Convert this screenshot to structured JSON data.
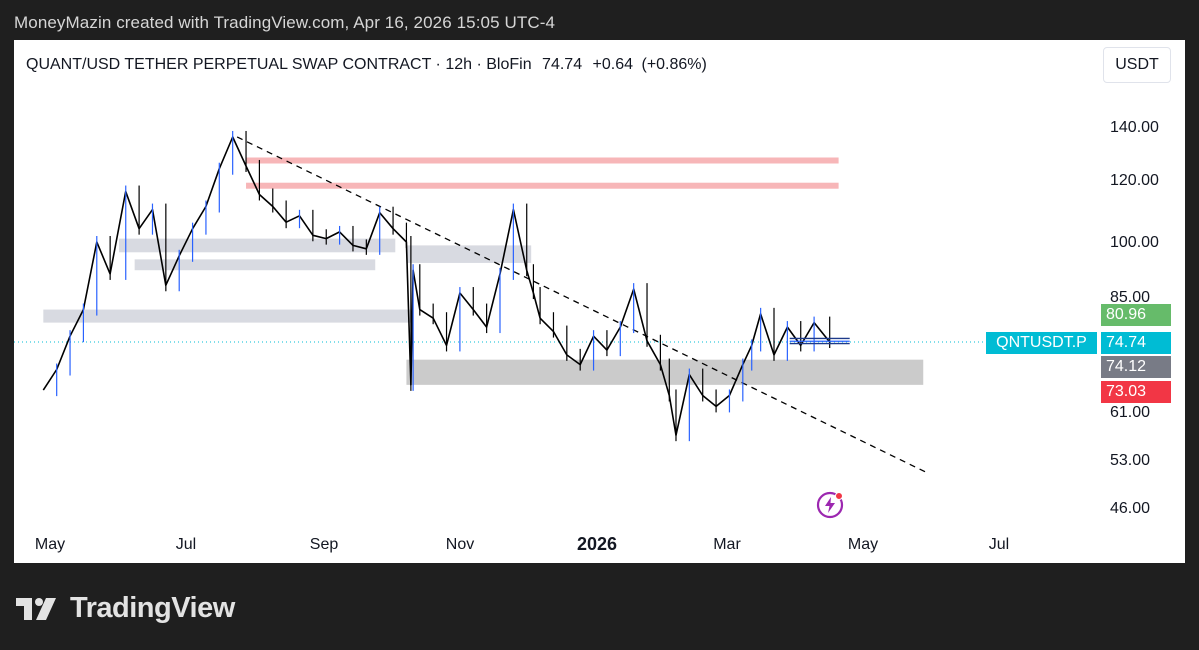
{
  "header": {
    "caption": "MoneyMazin created with TradingView.com, Apr 16, 2026 15:05 UTC-4"
  },
  "legend": {
    "symbol": "QUANT/USD TETHER PERPETUAL SWAP CONTRACT",
    "interval": "12h",
    "exchange": "BloFin",
    "last": "74.74",
    "change": "+0.64",
    "change_pct": "(+0.86%)"
  },
  "currency_button": "USDT",
  "price_scale": {
    "ticks": [
      "140.00",
      "120.00",
      "100.00",
      "85.00",
      "61.00",
      "53.00",
      "46.00"
    ]
  },
  "time_scale": {
    "ticks": [
      "May",
      "Jul",
      "Sep",
      "Nov",
      "2026",
      "Mar",
      "May",
      "Jul"
    ]
  },
  "tags": {
    "symbol_tag": "QNTUSDT.P",
    "last_price": "74.74",
    "green": "80.96",
    "gray": "74.12",
    "red": "73.03"
  },
  "colors": {
    "last_tag": "#00bcd4",
    "green_tag": "#66bb6a",
    "gray_tag": "#787b86",
    "red_tag": "#f23645",
    "candles": "#000000",
    "wick_accent": "#2962ff",
    "resistance": "#f7b6b8",
    "zone": "#d1d4dc",
    "support_zone": "#c8c8c8"
  },
  "footer": {
    "brand": "TradingView",
    "icon": "tradingview-logo-icon"
  },
  "chart_data": {
    "type": "line",
    "title": "QUANT/USD TETHER PERPETUAL SWAP CONTRACT · 12h · BloFin",
    "xlabel": "",
    "ylabel": "",
    "y_scale": "log",
    "ylim": [
      44,
      150
    ],
    "xlim": [
      "2025-04-25",
      "2026-07-25"
    ],
    "series": [
      {
        "name": "QNTUSDT.P",
        "x": [
          "2025-04-28",
          "2025-05-04",
          "2025-05-10",
          "2025-05-16",
          "2025-05-22",
          "2025-05-28",
          "2025-06-04",
          "2025-06-10",
          "2025-06-16",
          "2025-06-22",
          "2025-06-28",
          "2025-07-04",
          "2025-07-10",
          "2025-07-16",
          "2025-07-22",
          "2025-07-28",
          "2025-08-03",
          "2025-08-09",
          "2025-08-15",
          "2025-08-21",
          "2025-08-27",
          "2025-09-02",
          "2025-09-08",
          "2025-09-14",
          "2025-09-20",
          "2025-09-26",
          "2025-10-02",
          "2025-10-08",
          "2025-10-10",
          "2025-10-11",
          "2025-10-14",
          "2025-10-20",
          "2025-10-26",
          "2025-11-01",
          "2025-11-07",
          "2025-11-13",
          "2025-11-19",
          "2025-11-25",
          "2025-12-01",
          "2025-12-04",
          "2025-12-07",
          "2025-12-13",
          "2025-12-19",
          "2025-12-25",
          "2025-12-31",
          "2026-01-06",
          "2026-01-12",
          "2026-01-18",
          "2026-01-24",
          "2026-01-30",
          "2026-02-03",
          "2026-02-06",
          "2026-02-12",
          "2026-02-18",
          "2026-02-24",
          "2026-03-02",
          "2026-03-08",
          "2026-03-12",
          "2026-03-16",
          "2026-03-22",
          "2026-03-28",
          "2026-04-03",
          "2026-04-09",
          "2026-04-16"
        ],
        "values": [
          65,
          69,
          76,
          82,
          100,
          91,
          116,
          104,
          110,
          88,
          96,
          104,
          111,
          124,
          136,
          125,
          115,
          111,
          106,
          108,
          102,
          101,
          103,
          99,
          98,
          109,
          104,
          100,
          66,
          92,
          82,
          80,
          74,
          86,
          82,
          78,
          91,
          110,
          92,
          86,
          80,
          77,
          72,
          70,
          76,
          73,
          78,
          87,
          75,
          70,
          64,
          57,
          68,
          64,
          62,
          64,
          70,
          74,
          81,
          72,
          78,
          74,
          79,
          74.74
        ]
      }
    ],
    "trendline": {
      "from": [
        "2025-07-24",
        136
      ],
      "to": [
        "2026-05-30",
        51
      ]
    },
    "resistance_levels": [
      127,
      118
    ],
    "zones": [
      {
        "from": "2025-10-08",
        "to": "2026-05-28",
        "low": 66,
        "high": 71
      },
      {
        "from": "2025-06-01",
        "to": "2025-10-03",
        "low": 97,
        "high": 101
      },
      {
        "from": "2025-06-08",
        "to": "2025-09-24",
        "low": 92,
        "high": 95
      },
      {
        "from": "2025-04-28",
        "to": "2025-10-10",
        "low": 79,
        "high": 82
      },
      {
        "from": "2025-10-08",
        "to": "2025-12-03",
        "low": 94,
        "high": 99
      }
    ]
  }
}
